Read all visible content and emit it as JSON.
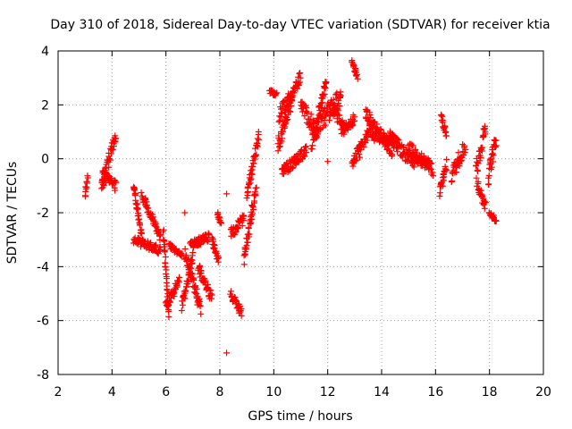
{
  "chart_data": {
    "type": "scatter",
    "title": "Day 310 of 2018, Sidereal Day-to-day VTEC variation (SDTVAR) for receiver ktia",
    "xlabel": "GPS time / hours",
    "ylabel": "SDTVAR / TECUs",
    "xlim": [
      2,
      20
    ],
    "ylim": [
      -8,
      4
    ],
    "x_ticks": [
      "2",
      "4",
      "6",
      "8",
      "10",
      "12",
      "14",
      "16",
      "18",
      "20"
    ],
    "y_ticks": [
      "4",
      "2",
      "0",
      "-2",
      "-4",
      "-6",
      "-8"
    ],
    "grid": true,
    "marker": "+",
    "series_color": "#ff0000",
    "segments": [
      {
        "start": 3.0,
        "end": 3.1,
        "start_value": -1.4,
        "end_value": -0.6,
        "spread": 0.3
      },
      {
        "start": 3.6,
        "end": 4.15,
        "start_value": -1.1,
        "end_value": 0.9,
        "spread": 0.5
      },
      {
        "start": 3.65,
        "end": 4.15,
        "start_value": -0.6,
        "end_value": -1.0,
        "spread": 0.4
      },
      {
        "start": 4.8,
        "end": 5.1,
        "start_value": -1.0,
        "end_value": -2.8,
        "spread": 0.3
      },
      {
        "start": 4.8,
        "end": 5.8,
        "start_value": -3.0,
        "end_value": -3.4,
        "spread": 0.3
      },
      {
        "start": 5.1,
        "end": 5.8,
        "start_value": -1.3,
        "end_value": -2.9,
        "spread": 0.3
      },
      {
        "start": 5.9,
        "end": 6.1,
        "start_value": -2.7,
        "end_value": -5.7,
        "spread": 0.4
      },
      {
        "start": 6.0,
        "end": 6.5,
        "start_value": -5.5,
        "end_value": -4.5,
        "spread": 0.4
      },
      {
        "start": 6.1,
        "end": 6.6,
        "start_value": -3.2,
        "end_value": -3.6,
        "spread": 0.2
      },
      {
        "start": 6.6,
        "end": 7.0,
        "start_value": -5.5,
        "end_value": -3.5,
        "spread": 0.4
      },
      {
        "start": 6.7,
        "end": 7.3,
        "start_value": -3.5,
        "end_value": -5.6,
        "spread": 0.5
      },
      {
        "start": 6.9,
        "end": 7.6,
        "start_value": -3.2,
        "end_value": -2.9,
        "spread": 0.3
      },
      {
        "start": 7.2,
        "end": 7.7,
        "start_value": -4.0,
        "end_value": -5.2,
        "spread": 0.4
      },
      {
        "start": 7.7,
        "end": 7.95,
        "start_value": -3.0,
        "end_value": -3.8,
        "spread": 0.3
      },
      {
        "start": 7.9,
        "end": 8.05,
        "start_value": -2.0,
        "end_value": -2.4,
        "spread": 0.2
      },
      {
        "start": 8.4,
        "end": 8.8,
        "start_value": -5.0,
        "end_value": -5.7,
        "spread": 0.3
      },
      {
        "start": 8.4,
        "end": 8.9,
        "start_value": -2.8,
        "end_value": -2.2,
        "spread": 0.4
      },
      {
        "start": 8.9,
        "end": 9.35,
        "start_value": -3.8,
        "end_value": -1.0,
        "spread": 0.5
      },
      {
        "start": 9.0,
        "end": 9.45,
        "start_value": -1.3,
        "end_value": 0.8,
        "spread": 0.4
      },
      {
        "start": 9.85,
        "end": 10.1,
        "start_value": 2.5,
        "end_value": 2.4,
        "spread": 0.2
      },
      {
        "start": 10.15,
        "end": 10.7,
        "start_value": 0.5,
        "end_value": 2.3,
        "spread": 0.6
      },
      {
        "start": 10.2,
        "end": 11.0,
        "start_value": 1.6,
        "end_value": 3.0,
        "spread": 0.5
      },
      {
        "start": 10.3,
        "end": 11.2,
        "start_value": -0.5,
        "end_value": 0.3,
        "spread": 0.4
      },
      {
        "start": 11.0,
        "end": 11.6,
        "start_value": 2.0,
        "end_value": 1.0,
        "spread": 0.6
      },
      {
        "start": 11.4,
        "end": 11.95,
        "start_value": 0.5,
        "end_value": 2.9,
        "spread": 0.5
      },
      {
        "start": 11.6,
        "end": 12.5,
        "start_value": 1.2,
        "end_value": 2.3,
        "spread": 0.7
      },
      {
        "start": 12.1,
        "end": 12.6,
        "start_value": 2.0,
        "end_value": 1.2,
        "spread": 0.5
      },
      {
        "start": 12.5,
        "end": 13.0,
        "start_value": 1.0,
        "end_value": 1.5,
        "spread": 0.4
      },
      {
        "start": 12.9,
        "end": 13.1,
        "start_value": 3.6,
        "end_value": 3.0,
        "spread": 0.2
      },
      {
        "start": 12.9,
        "end": 13.25,
        "start_value": -0.3,
        "end_value": 0.6,
        "spread": 0.4
      },
      {
        "start": 13.2,
        "end": 13.6,
        "start_value": 0.3,
        "end_value": 1.2,
        "spread": 0.5
      },
      {
        "start": 13.4,
        "end": 14.4,
        "start_value": 1.7,
        "end_value": 0.3,
        "spread": 0.5
      },
      {
        "start": 13.6,
        "end": 14.6,
        "start_value": 0.9,
        "end_value": 0.6,
        "spread": 0.4
      },
      {
        "start": 14.3,
        "end": 15.2,
        "start_value": 0.8,
        "end_value": -0.2,
        "spread": 0.5
      },
      {
        "start": 15.0,
        "end": 15.9,
        "start_value": 0.4,
        "end_value": -0.4,
        "spread": 0.5
      },
      {
        "start": 15.2,
        "end": 15.8,
        "start_value": 0.0,
        "end_value": -0.2,
        "spread": 0.3
      },
      {
        "start": 16.15,
        "end": 16.4,
        "start_value": -1.3,
        "end_value": -0.2,
        "spread": 0.5
      },
      {
        "start": 16.2,
        "end": 16.4,
        "start_value": 1.6,
        "end_value": 0.9,
        "spread": 0.3
      },
      {
        "start": 16.6,
        "end": 17.1,
        "start_value": -0.6,
        "end_value": 0.5,
        "spread": 0.6
      },
      {
        "start": 17.5,
        "end": 17.85,
        "start_value": -0.5,
        "end_value": 1.2,
        "spread": 0.7
      },
      {
        "start": 17.55,
        "end": 17.85,
        "start_value": -0.9,
        "end_value": -1.8,
        "spread": 0.4
      },
      {
        "start": 17.95,
        "end": 18.25,
        "start_value": -0.7,
        "end_value": 0.8,
        "spread": 0.6
      },
      {
        "start": 18.0,
        "end": 18.25,
        "start_value": -2.0,
        "end_value": -2.3,
        "spread": 0.2
      }
    ],
    "outliers": [
      {
        "x": 8.25,
        "y": -7.2
      },
      {
        "x": 8.25,
        "y": -1.3
      },
      {
        "x": 6.7,
        "y": -2.0
      },
      {
        "x": 12.0,
        "y": -0.1
      }
    ]
  }
}
